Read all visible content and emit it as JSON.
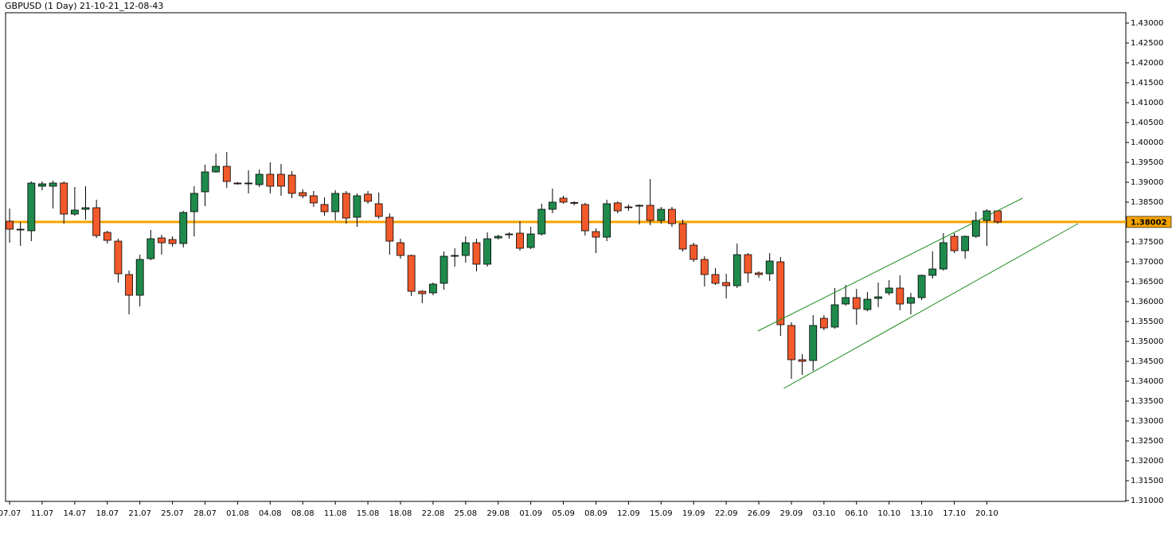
{
  "chart_data": {
    "type": "candlestick",
    "title": "GBPUSD (1 Day) 21-10-21_12-08-43",
    "categories": [
      "07.07",
      null,
      null,
      "11.07",
      null,
      null,
      "14.07",
      null,
      null,
      "18.07",
      null,
      null,
      "21.07",
      null,
      null,
      "25.07",
      null,
      null,
      "28.07",
      null,
      null,
      "01.08",
      null,
      null,
      "04.08",
      null,
      null,
      "08.08",
      null,
      null,
      "11.08",
      null,
      null,
      "15.08",
      null,
      null,
      "18.08",
      null,
      null,
      "22.08",
      null,
      null,
      "25.08",
      null,
      null,
      "29.08",
      null,
      null,
      "01.09",
      null,
      null,
      "05.09",
      null,
      null,
      "08.09",
      null,
      null,
      "12.09",
      null,
      null,
      "15.09",
      null,
      null,
      "19.09",
      null,
      null,
      "22.09",
      null,
      null,
      "26.09",
      null,
      null,
      "29.09",
      null,
      null,
      "03.10",
      null,
      null,
      "06.10",
      null,
      null,
      "10.10",
      null,
      null,
      "13.10",
      null,
      null,
      "17.10",
      null,
      null,
      "20.10",
      null
    ],
    "open": [
      1.3802,
      1.378,
      1.3778,
      1.389,
      1.389,
      1.3898,
      1.382,
      1.3832,
      1.3836,
      1.3774,
      1.3752,
      1.3668,
      1.3616,
      1.3708,
      1.376,
      1.3756,
      1.3746,
      1.3826,
      1.3876,
      1.3926,
      1.394,
      1.3898,
      1.3896,
      1.3894,
      1.392,
      1.392,
      1.3918,
      1.3874,
      1.3866,
      1.3844,
      1.3826,
      1.3872,
      1.3812,
      1.387,
      1.3846,
      1.3812,
      1.3748,
      1.3716,
      1.3626,
      1.3622,
      1.3646,
      1.3714,
      1.3716,
      1.3748,
      1.3694,
      1.376,
      1.3768,
      1.3772,
      1.3736,
      1.377,
      1.3832,
      1.386,
      1.3849,
      1.3844,
      1.3776,
      1.3762,
      1.3848,
      1.3838,
      1.384,
      1.3842,
      1.3804,
      1.3832,
      1.3796,
      1.3742,
      1.3706,
      1.3668,
      1.3648,
      1.364,
      1.3718,
      1.3672,
      1.367,
      1.37,
      1.354,
      1.3454,
      1.3452,
      1.3558,
      1.3536,
      1.3594,
      1.361,
      1.358,
      1.3608,
      1.3622,
      1.3634,
      1.3596,
      1.361,
      1.3666,
      1.3682,
      1.3764,
      1.3728,
      1.3764,
      1.3804,
      1.3828
    ],
    "high": [
      1.3834,
      1.38,
      1.3902,
      1.3902,
      1.3904,
      1.3902,
      1.3888,
      1.389,
      1.3856,
      1.3778,
      1.3758,
      1.3678,
      1.3718,
      1.378,
      1.3768,
      1.3764,
      1.3828,
      1.389,
      1.3944,
      1.3972,
      1.3976,
      1.39,
      1.393,
      1.3932,
      1.395,
      1.3946,
      1.3928,
      1.3882,
      1.3878,
      1.3862,
      1.388,
      1.3878,
      1.3872,
      1.3878,
      1.3874,
      1.3822,
      1.3758,
      1.3718,
      1.3628,
      1.3648,
      1.3726,
      1.3734,
      1.3764,
      1.3758,
      1.3774,
      1.3768,
      1.3774,
      1.3802,
      1.3788,
      1.3846,
      1.3884,
      1.3866,
      1.3852,
      1.3848,
      1.3784,
      1.3856,
      1.3852,
      1.3844,
      1.3844,
      1.3908,
      1.3838,
      1.3838,
      1.3806,
      1.3748,
      1.3714,
      1.3684,
      1.367,
      1.3746,
      1.3722,
      1.3676,
      1.3722,
      1.3712,
      1.3548,
      1.3468,
      1.3566,
      1.3566,
      1.3634,
      1.3642,
      1.3632,
      1.3624,
      1.3648,
      1.3654,
      1.3666,
      1.3622,
      1.3668,
      1.3726,
      1.3772,
      1.3772,
      1.3766,
      1.3826,
      1.3832,
      1.383
    ],
    "low": [
      1.3748,
      1.374,
      1.3752,
      1.388,
      1.3834,
      1.3796,
      1.3816,
      1.3806,
      1.376,
      1.3746,
      1.3648,
      1.3568,
      1.3588,
      1.3704,
      1.3718,
      1.3738,
      1.3736,
      1.3764,
      1.384,
      1.3924,
      1.3886,
      1.3894,
      1.3872,
      1.3888,
      1.3872,
      1.3866,
      1.386,
      1.386,
      1.3838,
      1.3816,
      1.3804,
      1.3796,
      1.3788,
      1.3846,
      1.3808,
      1.3718,
      1.3708,
      1.3614,
      1.3596,
      1.3616,
      1.363,
      1.3688,
      1.3698,
      1.3676,
      1.3688,
      1.3756,
      1.3758,
      1.3728,
      1.3732,
      1.3766,
      1.3822,
      1.3846,
      1.3842,
      1.3766,
      1.3722,
      1.3752,
      1.3822,
      1.3828,
      1.3794,
      1.3792,
      1.3796,
      1.3788,
      1.3726,
      1.37,
      1.3638,
      1.3642,
      1.3608,
      1.3634,
      1.3648,
      1.366,
      1.3652,
      1.3514,
      1.3406,
      1.3416,
      1.3426,
      1.3528,
      1.3532,
      1.359,
      1.3542,
      1.3576,
      1.3586,
      1.3616,
      1.3578,
      1.3568,
      1.3604,
      1.3658,
      1.3678,
      1.3722,
      1.3708,
      1.376,
      1.374,
      1.3796
    ],
    "close": [
      1.3782,
      1.3782,
      1.3898,
      1.3896,
      1.3898,
      1.382,
      1.383,
      1.3836,
      1.3766,
      1.3754,
      1.367,
      1.3616,
      1.3706,
      1.3758,
      1.3748,
      1.3746,
      1.3824,
      1.3872,
      1.3926,
      1.394,
      1.3902,
      1.3896,
      1.3898,
      1.392,
      1.389,
      1.389,
      1.3872,
      1.3866,
      1.3848,
      1.3826,
      1.3872,
      1.381,
      1.3866,
      1.3852,
      1.3814,
      1.3752,
      1.3716,
      1.3626,
      1.362,
      1.3644,
      1.3714,
      1.3716,
      1.3748,
      1.3694,
      1.3758,
      1.3764,
      1.377,
      1.3734,
      1.377,
      1.3832,
      1.385,
      1.385,
      1.3847,
      1.3778,
      1.3762,
      1.3846,
      1.3828,
      1.3836,
      1.3842,
      1.3804,
      1.3832,
      1.3796,
      1.3732,
      1.3706,
      1.3668,
      1.3646,
      1.364,
      1.3718,
      1.3672,
      1.3668,
      1.3702,
      1.3542,
      1.3454,
      1.345,
      1.354,
      1.3534,
      1.3592,
      1.361,
      1.3582,
      1.3606,
      1.3612,
      1.3634,
      1.3594,
      1.361,
      1.3666,
      1.3682,
      1.3748,
      1.3728,
      1.3764,
      1.3804,
      1.3828,
      1.38002
    ],
    "up_color": "#1f8a4c",
    "down_color": "#f2592b",
    "last_price": 1.38002,
    "last_price_color": "#f5a300",
    "trendlines": [
      {
        "x": [
          68.9,
          93.3
        ],
        "y": [
          1.3526,
          1.386
        ],
        "color": "#1c8c1c"
      },
      {
        "x": [
          71.3,
          98.4
        ],
        "y": [
          1.3382,
          1.3796
        ],
        "color": "#1c8c1c"
      }
    ],
    "xlim": [
      -0.37,
      102.8
    ],
    "ylim": [
      1.3098,
      1.4326
    ],
    "yticks": [
      {
        "value": 1.31,
        "label": "1.31000"
      },
      {
        "value": 1.315,
        "label": "1.31500"
      },
      {
        "value": 1.32,
        "label": "1.32000"
      },
      {
        "value": 1.325,
        "label": "1.32500"
      },
      {
        "value": 1.33,
        "label": "1.33000"
      },
      {
        "value": 1.335,
        "label": "1.33500"
      },
      {
        "value": 1.34,
        "label": "1.34000"
      },
      {
        "value": 1.345,
        "label": "1.34500"
      },
      {
        "value": 1.35,
        "label": "1.35000"
      },
      {
        "value": 1.355,
        "label": "1.35500"
      },
      {
        "value": 1.36,
        "label": "1.36000"
      },
      {
        "value": 1.365,
        "label": "1.36500"
      },
      {
        "value": 1.37,
        "label": "1.37000"
      },
      {
        "value": 1.375,
        "label": "1.37500"
      },
      {
        "value": 1.38,
        "label": "1.38000"
      },
      {
        "value": 1.385,
        "label": "1.38500"
      },
      {
        "value": 1.39,
        "label": "1.39000"
      },
      {
        "value": 1.395,
        "label": "1.39500"
      },
      {
        "value": 1.4,
        "label": "1.40000"
      },
      {
        "value": 1.405,
        "label": "1.40500"
      },
      {
        "value": 1.41,
        "label": "1.41000"
      },
      {
        "value": 1.415,
        "label": "1.41500"
      },
      {
        "value": 1.42,
        "label": "1.42000"
      },
      {
        "value": 1.425,
        "label": "1.42500"
      },
      {
        "value": 1.43,
        "label": "1.43000"
      }
    ]
  }
}
